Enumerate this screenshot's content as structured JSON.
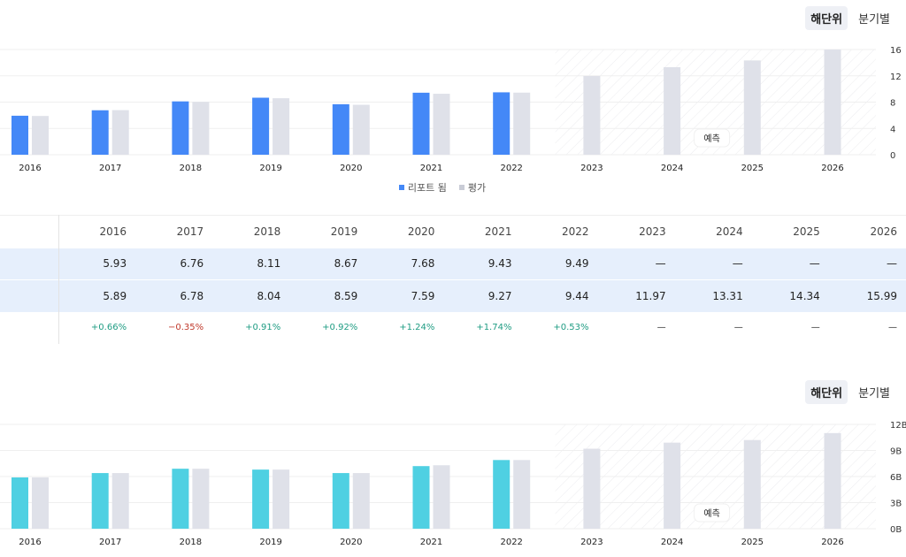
{
  "toggle_top": {
    "annual": "해단위",
    "quarterly": "분기별"
  },
  "toggle_bottom": {
    "annual": "해단위",
    "quarterly": "분기별"
  },
  "colors": {
    "reported": "#4488f7",
    "estimate": "#dfe1e9",
    "reported_revenue": "#4fd0e2",
    "positive": "#1f9c83",
    "negative": "#c0392b",
    "row_highlight": "#e6effc"
  },
  "legend": {
    "reported": "리포트 됨",
    "estimate": "평가"
  },
  "forecast_label": "예측",
  "table": {
    "years": [
      "2016",
      "2017",
      "2018",
      "2019",
      "2020",
      "2021",
      "2022",
      "2023",
      "2024",
      "2025",
      "2026"
    ],
    "reported": [
      "5.93",
      "6.76",
      "8.11",
      "8.67",
      "7.68",
      "9.43",
      "9.49",
      "—",
      "—",
      "—",
      "—"
    ],
    "estimate": [
      "5.89",
      "6.78",
      "8.04",
      "8.59",
      "7.59",
      "9.27",
      "9.44",
      "11.97",
      "13.31",
      "14.34",
      "15.99"
    ],
    "surprise": [
      "+0.66%",
      "−0.35%",
      "+0.91%",
      "+0.92%",
      "+1.24%",
      "+1.74%",
      "+0.53%",
      "—",
      "—",
      "—",
      "—"
    ]
  },
  "chart_data": [
    {
      "type": "bar",
      "categories": [
        "2016",
        "2017",
        "2018",
        "2019",
        "2020",
        "2021",
        "2022",
        "2023",
        "2024",
        "2025",
        "2026"
      ],
      "series": [
        {
          "name": "리포트 됨",
          "values": [
            5.93,
            6.76,
            8.11,
            8.67,
            7.68,
            9.43,
            9.49,
            null,
            null,
            null,
            null
          ]
        },
        {
          "name": "평가",
          "values": [
            5.89,
            6.78,
            8.04,
            8.59,
            7.59,
            9.27,
            9.44,
            11.97,
            13.31,
            14.34,
            15.99
          ]
        }
      ],
      "yticks": [
        "0",
        "4",
        "8",
        "12",
        "16"
      ],
      "ylim": [
        0,
        16
      ],
      "forecast_from": "2023",
      "grid": true,
      "legend_position": "bottom"
    },
    {
      "type": "bar",
      "categories": [
        "2016",
        "2017",
        "2018",
        "2019",
        "2020",
        "2021",
        "2022",
        "2023",
        "2024",
        "2025",
        "2026"
      ],
      "series": [
        {
          "values": [
            5.9,
            6.4,
            6.9,
            6.8,
            6.4,
            7.2,
            7.9,
            null,
            null,
            null,
            null
          ]
        },
        {
          "values": [
            5.9,
            6.4,
            6.9,
            6.8,
            6.4,
            7.3,
            7.9,
            9.2,
            9.9,
            10.2,
            11.0
          ]
        }
      ],
      "yticks": [
        "0B",
        "3B",
        "6B",
        "9B",
        "12B"
      ],
      "ylim": [
        0,
        12
      ],
      "forecast_from": "2023",
      "grid": true
    }
  ]
}
